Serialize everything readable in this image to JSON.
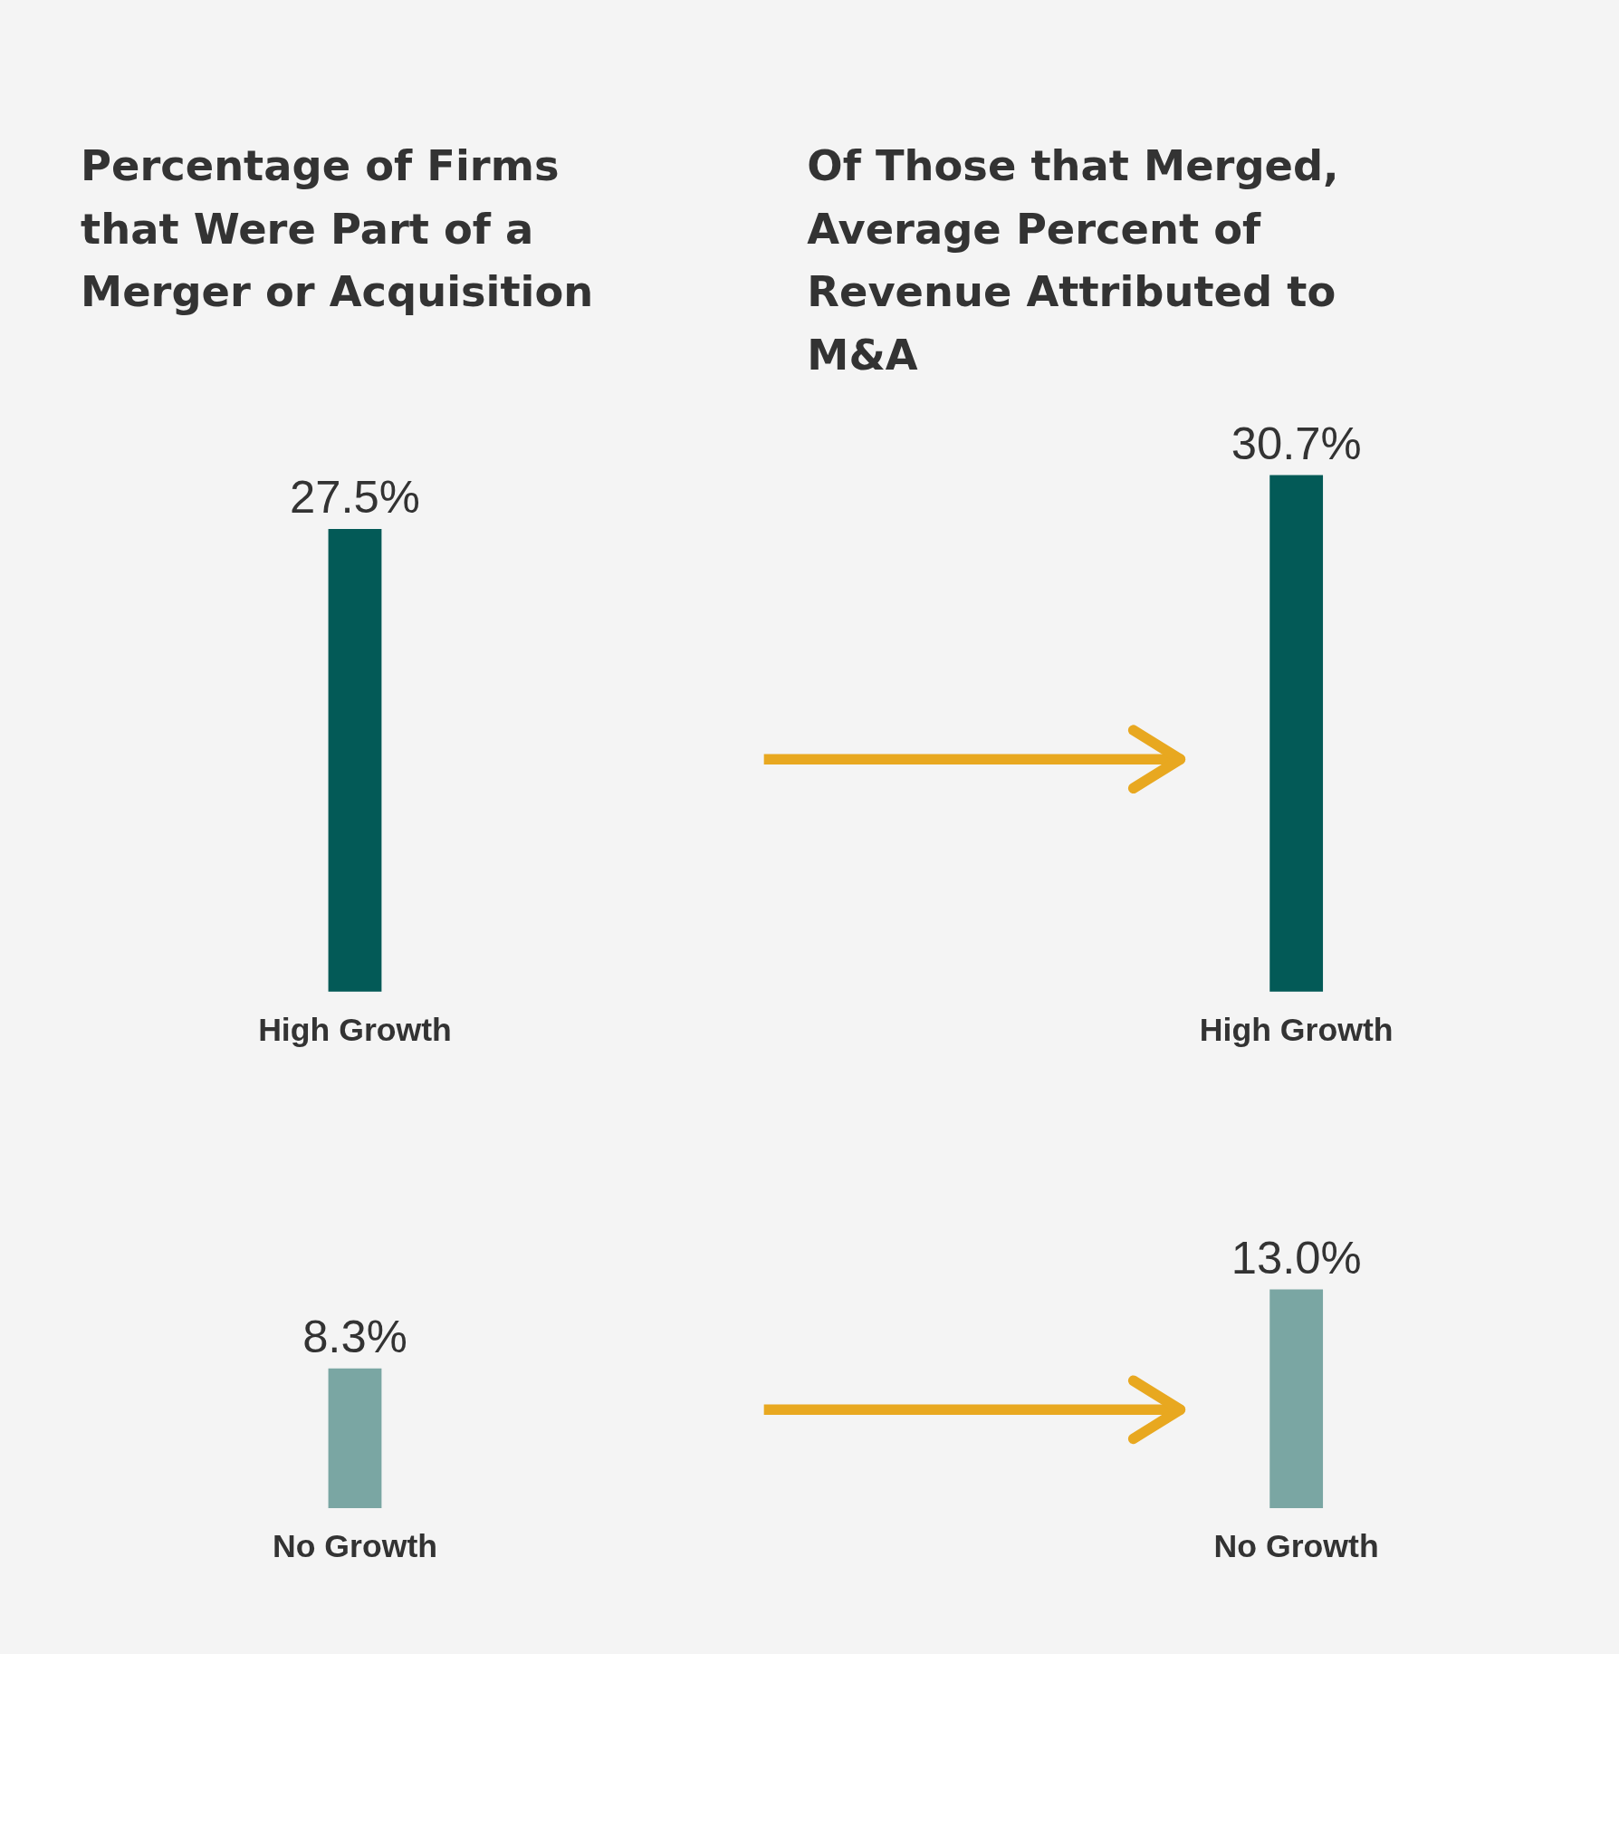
{
  "chart_data": [
    {
      "type": "bar",
      "title": "Percentage of Firms that Were Part of a Merger or Acquisition",
      "categories": [
        "High Growth"
      ],
      "values": [
        27.5
      ],
      "colors": [
        "#035a57"
      ],
      "value_labels": [
        "27.5%"
      ]
    },
    {
      "type": "bar",
      "title": "Of Those that Merged, Average Percent of Revenue Attributed to M&A",
      "categories": [
        "High Growth"
      ],
      "values": [
        30.7
      ],
      "colors": [
        "#035a57"
      ],
      "value_labels": [
        "30.7%"
      ]
    },
    {
      "type": "bar",
      "categories": [
        "No Growth"
      ],
      "values": [
        8.3
      ],
      "colors": [
        "#7aa6a3"
      ],
      "value_labels": [
        "8.3%"
      ]
    },
    {
      "type": "bar",
      "categories": [
        "No Growth"
      ],
      "values": [
        13.0
      ],
      "colors": [
        "#7aa6a3"
      ],
      "value_labels": [
        "13.0%"
      ]
    }
  ]
}
